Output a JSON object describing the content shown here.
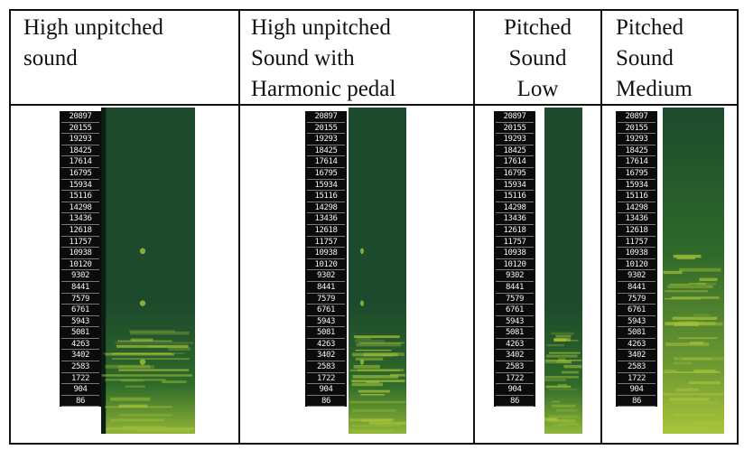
{
  "table": {
    "columns": [
      {
        "heading": "High unpitched\nsound",
        "align": "left"
      },
      {
        "heading": "High unpitched\nSound with\nHarmonic pedal",
        "align": "left"
      },
      {
        "heading": "Pitched\nSound\nLow",
        "align": "center"
      },
      {
        "heading": "Pitched\nSound\nMedium",
        "align": "left"
      }
    ],
    "frequency_ticks": [
      "20897",
      "20155",
      "19293",
      "18425",
      "17614",
      "16795",
      "15934",
      "15116",
      "14298",
      "13436",
      "12618",
      "11757",
      "10938",
      "10120",
      "9302",
      "8441",
      "7579",
      "6761",
      "5943",
      "5081",
      "4263",
      "3402",
      "2583",
      "1722",
      "904",
      "86"
    ]
  },
  "colors": {
    "spectrogram_dark": "#1d4a2c",
    "spectrogram_mid": "#2f6a2a",
    "spectrogram_bright": "#a9c43a",
    "left_strip": "#0d1d14"
  }
}
